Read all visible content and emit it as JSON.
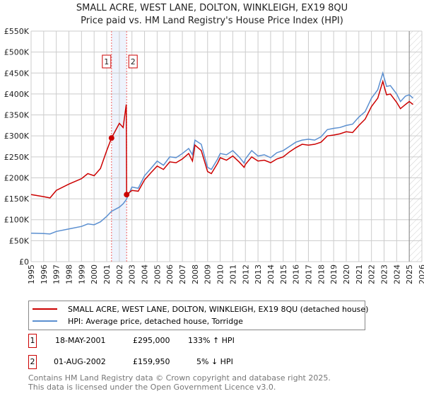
{
  "chart_data": {
    "type": "line",
    "title": "SMALL ACRE, WEST LANE, DOLTON, WINKLEIGH, EX19 8QU",
    "subtitle": "Price paid vs. HM Land Registry's House Price Index (HPI)",
    "xlim": [
      1995,
      2026
    ],
    "ylim": [
      0,
      550000
    ],
    "x_ticks": [
      "1995",
      "1996",
      "1997",
      "1998",
      "1999",
      "2000",
      "2001",
      "2002",
      "2003",
      "2004",
      "2005",
      "2006",
      "2007",
      "2008",
      "2009",
      "2010",
      "2011",
      "2012",
      "2013",
      "2014",
      "2015",
      "2016",
      "2017",
      "2018",
      "2019",
      "2020",
      "2021",
      "2022",
      "2023",
      "2024",
      "2025",
      "2026"
    ],
    "y_ticks": [
      "£0",
      "£50K",
      "£100K",
      "£150K",
      "£200K",
      "£250K",
      "£300K",
      "£350K",
      "£400K",
      "£450K",
      "£500K",
      "£550K"
    ],
    "grid": true,
    "series": [
      {
        "name": "SMALL ACRE, WEST LANE, DOLTON, WINKLEIGH, EX19 8QU (detached house)",
        "color": "#cc0000",
        "x": [
          1995,
          1996,
          1996.5,
          1997,
          1998,
          1999,
          1999.5,
          2000,
          2000.5,
          2001,
          2001.38,
          2002,
          2002.3,
          2002.55,
          2002.58,
          2003,
          2003.5,
          2004,
          2004.5,
          2005,
          2005.5,
          2006,
          2006.5,
          2007,
          2007.5,
          2007.8,
          2008,
          2008.5,
          2009,
          2009.3,
          2009.8,
          2010,
          2010.5,
          2011,
          2011.5,
          2011.9,
          2012,
          2012.5,
          2013,
          2013.5,
          2014,
          2014.5,
          2015,
          2015.5,
          2016,
          2016.5,
          2017,
          2017.5,
          2018,
          2018.5,
          2019,
          2019.5,
          2020,
          2020.5,
          2021,
          2021.5,
          2022,
          2022.5,
          2022.9,
          2023.2,
          2023.5,
          2024,
          2024.3,
          2024.7,
          2025,
          2025.3
        ],
        "y": [
          160000,
          155000,
          152000,
          170000,
          185000,
          198000,
          210000,
          205000,
          222000,
          265000,
          295000,
          330000,
          320000,
          375000,
          159950,
          170000,
          168000,
          195000,
          212000,
          228000,
          220000,
          238000,
          236000,
          245000,
          258000,
          240000,
          278000,
          265000,
          215000,
          210000,
          235000,
          248000,
          242000,
          252000,
          238000,
          225000,
          232000,
          250000,
          240000,
          242000,
          236000,
          245000,
          250000,
          262000,
          272000,
          280000,
          278000,
          280000,
          285000,
          300000,
          302000,
          305000,
          310000,
          308000,
          325000,
          340000,
          370000,
          390000,
          430000,
          398000,
          400000,
          380000,
          365000,
          375000,
          382000,
          375000
        ]
      },
      {
        "name": "HPI: Average price, detached house, Torridge",
        "color": "#5b8fd0",
        "x": [
          1995,
          1996,
          1996.5,
          1997,
          1998,
          1999,
          1999.5,
          2000,
          2000.5,
          2001,
          2001.38,
          2002,
          2002.3,
          2002.55,
          2002.58,
          2003,
          2003.5,
          2004,
          2004.5,
          2005,
          2005.5,
          2006,
          2006.5,
          2007,
          2007.5,
          2007.8,
          2008,
          2008.5,
          2009,
          2009.3,
          2009.8,
          2010,
          2010.5,
          2011,
          2011.5,
          2011.9,
          2012,
          2012.5,
          2013,
          2013.5,
          2014,
          2014.5,
          2015,
          2015.5,
          2016,
          2016.5,
          2017,
          2017.5,
          2018,
          2018.5,
          2019,
          2019.5,
          2020,
          2020.5,
          2021,
          2021.5,
          2022,
          2022.5,
          2022.9,
          2023.2,
          2023.5,
          2024,
          2024.3,
          2024.7,
          2025,
          2025.3
        ],
        "y": [
          68000,
          67000,
          66000,
          72000,
          78000,
          84000,
          90000,
          88000,
          95000,
          108000,
          120000,
          130000,
          138000,
          148000,
          150000,
          178000,
          175000,
          205000,
          222000,
          240000,
          230000,
          250000,
          248000,
          258000,
          270000,
          255000,
          290000,
          280000,
          225000,
          220000,
          245000,
          258000,
          255000,
          265000,
          250000,
          235000,
          245000,
          265000,
          252000,
          255000,
          248000,
          260000,
          265000,
          275000,
          285000,
          290000,
          292000,
          290000,
          298000,
          315000,
          318000,
          320000,
          325000,
          328000,
          345000,
          358000,
          390000,
          410000,
          450000,
          418000,
          420000,
          400000,
          382000,
          395000,
          398000,
          390000
        ]
      }
    ],
    "sales": [
      {
        "label": "1",
        "x": 2001.38,
        "y": 295000
      },
      {
        "label": "2",
        "x": 2002.58,
        "y": 159950
      }
    ],
    "shaded_range": [
      2001.38,
      2002.58
    ],
    "forecast_from": 2025.0
  },
  "legend": [
    "SMALL ACRE, WEST LANE, DOLTON, WINKLEIGH, EX19 8QU (detached house)",
    "HPI: Average price, detached house, Torridge"
  ],
  "transactions": [
    {
      "num": "1",
      "date": "18-MAY-2001",
      "price": "£295,000",
      "hpi": "133% ↑ HPI"
    },
    {
      "num": "2",
      "date": "01-AUG-2002",
      "price": "£159,950",
      "hpi": "5% ↓ HPI"
    }
  ],
  "footer": [
    "Contains HM Land Registry data © Crown copyright and database right 2025.",
    "This data is licensed under the Open Government Licence v3.0."
  ]
}
